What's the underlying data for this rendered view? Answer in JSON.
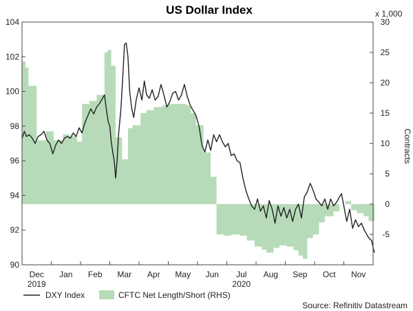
{
  "chart_data": {
    "type": "line",
    "title": "US Dollar Index",
    "left_axis": {
      "min": 90,
      "max": 104,
      "ticks": [
        90,
        92,
        94,
        96,
        98,
        100,
        102,
        104
      ]
    },
    "right_axis": {
      "min": -10,
      "max": 30,
      "ticks": [
        -5,
        0,
        5,
        10,
        15,
        20,
        25,
        30
      ],
      "unit_label": "x 1,000",
      "label": "Contracts"
    },
    "x_axis": {
      "min": 0,
      "max": 12,
      "months": [
        {
          "label": "Dec",
          "pos": 0.5
        },
        {
          "label": "Jan",
          "pos": 1.5
        },
        {
          "label": "Feb",
          "pos": 2.5
        },
        {
          "label": "Mar",
          "pos": 3.5
        },
        {
          "label": "Apr",
          "pos": 4.5
        },
        {
          "label": "May",
          "pos": 5.5
        },
        {
          "label": "Jun",
          "pos": 6.5
        },
        {
          "label": "Jul",
          "pos": 7.5
        },
        {
          "label": "Aug",
          "pos": 8.5
        },
        {
          "label": "Sep",
          "pos": 9.5
        },
        {
          "label": "Oct",
          "pos": 10.5
        },
        {
          "label": "Nov",
          "pos": 11.5
        }
      ],
      "years": [
        {
          "label": "2019",
          "pos": 0.5
        },
        {
          "label": "2020",
          "pos": 7.5
        }
      ]
    },
    "series": [
      {
        "name": "DXY Index",
        "axis": "left",
        "style": "line",
        "color": "#222222",
        "points": [
          [
            0.0,
            97.3
          ],
          [
            0.08,
            97.7
          ],
          [
            0.15,
            97.4
          ],
          [
            0.25,
            97.5
          ],
          [
            0.35,
            97.3
          ],
          [
            0.45,
            97.0
          ],
          [
            0.55,
            97.4
          ],
          [
            0.65,
            97.5
          ],
          [
            0.75,
            97.7
          ],
          [
            0.85,
            97.2
          ],
          [
            0.95,
            97.0
          ],
          [
            1.05,
            96.4
          ],
          [
            1.15,
            96.9
          ],
          [
            1.25,
            97.2
          ],
          [
            1.35,
            97.0
          ],
          [
            1.45,
            97.3
          ],
          [
            1.55,
            97.4
          ],
          [
            1.65,
            97.3
          ],
          [
            1.75,
            97.6
          ],
          [
            1.85,
            97.4
          ],
          [
            1.95,
            97.9
          ],
          [
            2.05,
            97.6
          ],
          [
            2.15,
            98.2
          ],
          [
            2.25,
            98.6
          ],
          [
            2.35,
            99.0
          ],
          [
            2.45,
            98.7
          ],
          [
            2.55,
            99.1
          ],
          [
            2.65,
            99.3
          ],
          [
            2.75,
            99.6
          ],
          [
            2.82,
            99.8
          ],
          [
            2.88,
            99.0
          ],
          [
            2.95,
            98.2
          ],
          [
            3.0,
            98.0
          ],
          [
            3.05,
            97.1
          ],
          [
            3.1,
            96.5
          ],
          [
            3.15,
            96.0
          ],
          [
            3.2,
            95.0
          ],
          [
            3.25,
            96.0
          ],
          [
            3.3,
            97.5
          ],
          [
            3.38,
            99.0
          ],
          [
            3.45,
            101.0
          ],
          [
            3.5,
            102.7
          ],
          [
            3.56,
            102.8
          ],
          [
            3.62,
            102.0
          ],
          [
            3.68,
            100.0
          ],
          [
            3.75,
            99.0
          ],
          [
            3.82,
            98.5
          ],
          [
            3.9,
            99.5
          ],
          [
            4.0,
            100.2
          ],
          [
            4.1,
            99.5
          ],
          [
            4.18,
            100.6
          ],
          [
            4.26,
            99.8
          ],
          [
            4.35,
            99.6
          ],
          [
            4.45,
            100.1
          ],
          [
            4.55,
            99.5
          ],
          [
            4.65,
            99.7
          ],
          [
            4.75,
            100.4
          ],
          [
            4.85,
            99.8
          ],
          [
            4.95,
            99.1
          ],
          [
            5.05,
            99.4
          ],
          [
            5.15,
            99.9
          ],
          [
            5.25,
            100.0
          ],
          [
            5.35,
            99.5
          ],
          [
            5.45,
            99.8
          ],
          [
            5.55,
            100.4
          ],
          [
            5.65,
            99.7
          ],
          [
            5.75,
            99.2
          ],
          [
            5.85,
            98.9
          ],
          [
            5.95,
            98.6
          ],
          [
            6.05,
            98.0
          ],
          [
            6.15,
            96.9
          ],
          [
            6.25,
            96.5
          ],
          [
            6.35,
            97.2
          ],
          [
            6.45,
            96.6
          ],
          [
            6.55,
            97.5
          ],
          [
            6.65,
            97.1
          ],
          [
            6.75,
            97.5
          ],
          [
            6.85,
            97.1
          ],
          [
            6.95,
            96.8
          ],
          [
            7.05,
            97.0
          ],
          [
            7.15,
            96.3
          ],
          [
            7.25,
            96.4
          ],
          [
            7.35,
            96.0
          ],
          [
            7.45,
            95.9
          ],
          [
            7.55,
            95.0
          ],
          [
            7.65,
            94.3
          ],
          [
            7.75,
            93.8
          ],
          [
            7.85,
            93.4
          ],
          [
            7.95,
            93.2
          ],
          [
            8.05,
            93.8
          ],
          [
            8.15,
            93.1
          ],
          [
            8.25,
            93.4
          ],
          [
            8.35,
            92.7
          ],
          [
            8.45,
            93.7
          ],
          [
            8.55,
            93.2
          ],
          [
            8.65,
            92.4
          ],
          [
            8.75,
            93.4
          ],
          [
            8.85,
            92.8
          ],
          [
            8.95,
            93.3
          ],
          [
            9.05,
            92.7
          ],
          [
            9.15,
            93.2
          ],
          [
            9.25,
            92.5
          ],
          [
            9.35,
            93.2
          ],
          [
            9.45,
            93.5
          ],
          [
            9.55,
            92.7
          ],
          [
            9.65,
            93.9
          ],
          [
            9.75,
            94.2
          ],
          [
            9.85,
            94.7
          ],
          [
            9.95,
            94.3
          ],
          [
            10.05,
            93.8
          ],
          [
            10.15,
            93.6
          ],
          [
            10.25,
            93.4
          ],
          [
            10.35,
            93.8
          ],
          [
            10.45,
            93.2
          ],
          [
            10.55,
            93.8
          ],
          [
            10.65,
            93.4
          ],
          [
            10.75,
            93.6
          ],
          [
            10.85,
            93.9
          ],
          [
            10.92,
            94.1
          ],
          [
            11.0,
            93.4
          ],
          [
            11.1,
            92.5
          ],
          [
            11.2,
            93.2
          ],
          [
            11.3,
            92.1
          ],
          [
            11.4,
            92.6
          ],
          [
            11.5,
            92.2
          ],
          [
            11.6,
            92.4
          ],
          [
            11.7,
            92.0
          ],
          [
            11.8,
            91.7
          ],
          [
            11.88,
            91.5
          ],
          [
            11.95,
            91.4
          ],
          [
            12.0,
            91.0
          ],
          [
            12.05,
            90.7
          ]
        ]
      },
      {
        "name": "CFTC Net Length/Short (RHS)",
        "axis": "right",
        "style": "step-area",
        "color": "#b7dbb8",
        "steps": [
          [
            0.0,
            23.5
          ],
          [
            0.12,
            22.5
          ],
          [
            0.22,
            19.5
          ],
          [
            0.5,
            10.5
          ],
          [
            0.82,
            12.0
          ],
          [
            1.08,
            10.5
          ],
          [
            1.4,
            11.5
          ],
          [
            1.62,
            11.2
          ],
          [
            1.88,
            10.3
          ],
          [
            2.05,
            16.5
          ],
          [
            2.3,
            17.0
          ],
          [
            2.55,
            18.0
          ],
          [
            2.82,
            25.0
          ],
          [
            2.92,
            25.4
          ],
          [
            3.05,
            22.8
          ],
          [
            3.2,
            11.0
          ],
          [
            3.42,
            7.4
          ],
          [
            3.62,
            12.5
          ],
          [
            3.78,
            13.0
          ],
          [
            4.05,
            15.0
          ],
          [
            4.25,
            15.5
          ],
          [
            4.5,
            16.0
          ],
          [
            4.8,
            16.3
          ],
          [
            5.0,
            16.5
          ],
          [
            5.4,
            16.5
          ],
          [
            5.62,
            16.3
          ],
          [
            5.78,
            15.0
          ],
          [
            5.95,
            13.0
          ],
          [
            6.2,
            8.5
          ],
          [
            6.45,
            4.5
          ],
          [
            6.65,
            -5.0
          ],
          [
            6.9,
            -5.2
          ],
          [
            7.15,
            -5.0
          ],
          [
            7.45,
            -5.2
          ],
          [
            7.68,
            -6.0
          ],
          [
            7.95,
            -7.0
          ],
          [
            8.2,
            -7.5
          ],
          [
            8.35,
            -8.0
          ],
          [
            8.6,
            -7.2
          ],
          [
            8.8,
            -6.8
          ],
          [
            9.05,
            -7.0
          ],
          [
            9.28,
            -7.6
          ],
          [
            9.45,
            -8.5
          ],
          [
            9.6,
            -9.0
          ],
          [
            9.75,
            -5.6
          ],
          [
            9.95,
            -5.0
          ],
          [
            10.15,
            -3.0
          ],
          [
            10.35,
            -2.0
          ],
          [
            10.65,
            -1.2
          ],
          [
            10.85,
            0.0
          ],
          [
            11.05,
            0.5
          ],
          [
            11.25,
            -1.0
          ],
          [
            11.45,
            -1.5
          ],
          [
            11.68,
            -2.0
          ],
          [
            11.85,
            -2.8
          ],
          [
            12.05,
            -2.8
          ],
          [
            12.05,
            0.0
          ]
        ]
      }
    ],
    "legend": [
      {
        "label": "DXY Index",
        "kind": "line",
        "color": "#222222"
      },
      {
        "label": "CFTC Net Length/Short (RHS)",
        "kind": "area",
        "color": "#b7dbb8"
      }
    ],
    "source": "Source: Refinitiv Datastream"
  }
}
